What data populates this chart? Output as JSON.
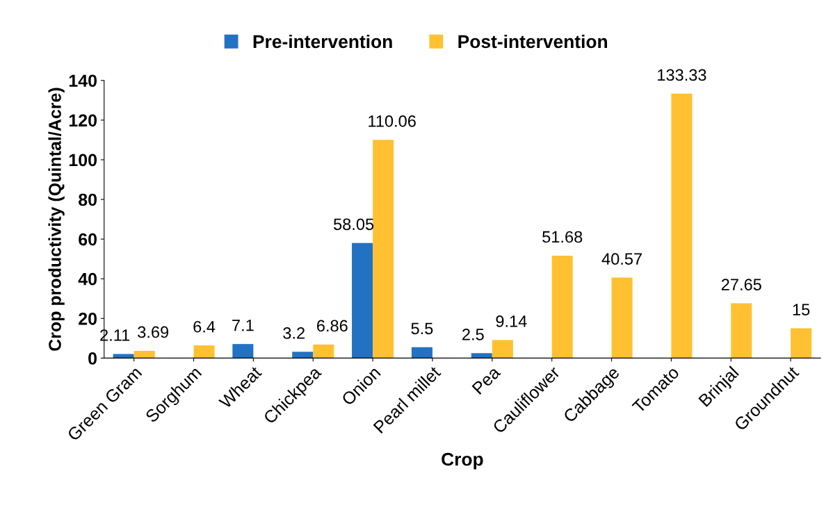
{
  "chart_data": {
    "type": "bar",
    "xlabel": "Crop",
    "ylabel": "Crop productivity (Quintal/Acre)",
    "categories": [
      "Green Gram",
      "Sorghum",
      "Wheat",
      "Chickpea",
      "Onion",
      "Pearl millet",
      "Pea",
      "Cauliflower",
      "Cabbage",
      "Tomato",
      "Brinjal",
      "Groundnut"
    ],
    "series": [
      {
        "name": "Pre-intervention",
        "color": "#2272c3",
        "values": [
          2.11,
          null,
          7.1,
          3.2,
          58.05,
          5.5,
          2.5,
          null,
          null,
          null,
          null,
          null
        ]
      },
      {
        "name": "Post-intervention",
        "color": "#ffc131",
        "values": [
          3.69,
          6.4,
          null,
          6.86,
          110.06,
          null,
          9.14,
          51.68,
          40.57,
          133.33,
          27.65,
          15
        ]
      }
    ],
    "ylim": [
      0,
      140
    ],
    "yticks": [
      0,
      20,
      40,
      60,
      80,
      100,
      120,
      140
    ],
    "data_labels": true,
    "grid": false,
    "legend": "top"
  }
}
